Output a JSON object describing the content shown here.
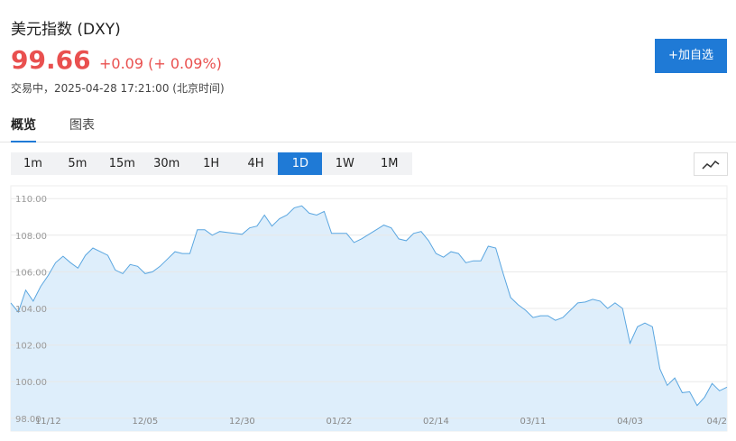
{
  "header": {
    "title": "美元指数 (DXY)",
    "price": "99.66",
    "change": "+0.09 (+ 0.09%)",
    "status": "交易中，2025-04-28 17:21:00 (北京时间)"
  },
  "button": "+加自选",
  "tabs": [
    "概览",
    "图表"
  ],
  "timeframes": [
    "1m",
    "5m",
    "15m",
    "30m",
    "1H",
    "4H",
    "1D",
    "1W",
    "1M"
  ],
  "chart_data": {
    "type": "area",
    "color": "#5aa6e0",
    "fill": "#deeefb",
    "grid": true,
    "categories": [
      null,
      null,
      null,
      null,
      null,
      "11/12",
      null,
      null,
      null,
      null,
      null,
      null,
      null,
      null,
      null,
      null,
      null,
      null,
      "12/05",
      null,
      null,
      null,
      null,
      null,
      null,
      null,
      null,
      null,
      null,
      null,
      null,
      "12/30",
      null,
      null,
      null,
      null,
      null,
      null,
      null,
      null,
      null,
      null,
      null,
      null,
      "01/22",
      null,
      null,
      null,
      null,
      null,
      null,
      null,
      null,
      null,
      null,
      null,
      null,
      "02/14",
      null,
      null,
      null,
      null,
      null,
      null,
      null,
      null,
      null,
      null,
      null,
      null,
      "03/11",
      null,
      null,
      null,
      null,
      null,
      null,
      null,
      null,
      null,
      null,
      null,
      null,
      "04/03",
      null,
      null,
      null,
      null,
      null,
      null,
      null,
      null,
      null,
      null,
      null,
      null,
      "04/2"
    ],
    "values": [
      104.3,
      103.8,
      105.0,
      104.4,
      105.2,
      105.8,
      106.5,
      106.85,
      106.5,
      106.2,
      106.9,
      107.3,
      107.1,
      106.9,
      106.1,
      105.9,
      106.4,
      106.3,
      105.9,
      106.0,
      106.3,
      106.7,
      107.1,
      107.0,
      107.0,
      108.3,
      108.3,
      108.0,
      108.2,
      108.15,
      108.1,
      108.05,
      108.4,
      108.5,
      109.1,
      108.5,
      108.9,
      109.1,
      109.5,
      109.6,
      109.2,
      109.1,
      109.3,
      108.1,
      108.1,
      108.1,
      107.6,
      107.8,
      108.05,
      108.3,
      108.55,
      108.4,
      107.8,
      107.7,
      108.1,
      108.2,
      107.7,
      107.0,
      106.8,
      107.1,
      107.0,
      106.5,
      106.6,
      106.6,
      107.4,
      107.3,
      105.9,
      104.6,
      104.2,
      103.9,
      103.5,
      103.6,
      103.6,
      103.35,
      103.5,
      103.9,
      104.3,
      104.35,
      104.5,
      104.4,
      104.0,
      104.3,
      104.0,
      102.1,
      103.0,
      103.2,
      103.0,
      100.7,
      99.8,
      100.2,
      99.4,
      99.45,
      98.7,
      99.15,
      99.9,
      99.5,
      99.7
    ],
    "ylim": [
      97.3,
      110.7
    ],
    "yticks": [
      {
        "value": 98,
        "label": "98.00"
      },
      {
        "value": 100,
        "label": "100.00"
      },
      {
        "value": 102,
        "label": "102.00"
      },
      {
        "value": 104,
        "label": "104.00"
      },
      {
        "value": 106,
        "label": "106.00"
      },
      {
        "value": 108,
        "label": "108.00"
      },
      {
        "value": 110,
        "label": "110.00"
      }
    ]
  }
}
